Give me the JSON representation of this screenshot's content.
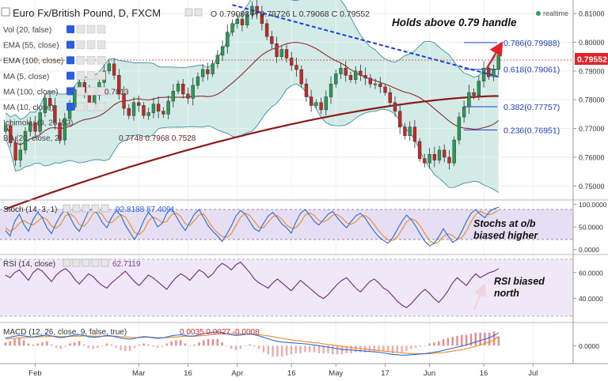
{
  "header": {
    "symbol_title": "Euro Fx/British Pound, D, FXCM",
    "ohlc": "O 0.79098 H 0.79726 L 0.79068 C 0.79552",
    "realtime_label": "realtime"
  },
  "indicators": [
    {
      "label": "Vol (20, false)",
      "value": ""
    },
    {
      "label": "EMA (55, close)",
      "value": ""
    },
    {
      "label": "EMA (100, close)",
      "value": ""
    },
    {
      "label": "MA (5, close)",
      "value": ""
    },
    {
      "label": "MA (100, close)",
      "value": "0.7813"
    },
    {
      "label": "MA (10, close)",
      "value": ""
    },
    {
      "label": "Ichimoku (9, 26, 52)",
      "value": ""
    },
    {
      "label": "BB (20, close, 2)",
      "value": "0.7748 0.7968 0.7528"
    }
  ],
  "annotations": {
    "headline": "Holds above 0.79 handle",
    "stoch_note_1": "Stochs at o/b",
    "stoch_note_2": "biased higher",
    "rsi_note_1": "RSI biased",
    "rsi_note_2": "north"
  },
  "fib_levels": [
    {
      "label": "0.786(0.79988)",
      "value": 0.79988
    },
    {
      "label": "0.618(0.79061)",
      "value": 0.79061
    },
    {
      "label": "0.382(0.77757)",
      "value": 0.77757
    },
    {
      "label": "0.236(0.76951)",
      "value": 0.76951
    }
  ],
  "price_axis": {
    "ticks": [
      "0.81000",
      "0.80000",
      "0.79000",
      "0.78000",
      "0.77000",
      "0.76000",
      "0.75000"
    ],
    "tick_values": [
      0.81,
      0.8,
      0.79,
      0.78,
      0.77,
      0.76,
      0.75
    ],
    "current_price": "0.79552",
    "current_value": 0.79552,
    "range": [
      0.7465,
      0.8125
    ]
  },
  "stoch_panel": {
    "label": "Stoch (14, 3, 1)",
    "values": "92.8188 87.4091",
    "ticks": [
      "100.0000",
      "50.0000",
      "0.0000"
    ],
    "tick_values": [
      100,
      50,
      0
    ],
    "bands": [
      80,
      20
    ],
    "range": [
      -4,
      104
    ],
    "k": [
      42,
      30,
      62,
      78,
      55,
      40,
      66,
      82,
      70,
      48,
      35,
      58,
      76,
      90,
      72,
      52,
      40,
      62,
      84,
      92,
      78,
      60,
      48,
      70,
      86,
      76,
      54,
      38,
      22,
      40,
      64,
      82,
      70,
      50,
      58,
      80,
      90,
      74,
      56,
      42,
      60,
      78,
      88,
      70,
      52,
      40,
      30,
      18,
      34,
      52,
      74,
      86,
      78,
      62,
      46,
      40,
      58,
      74,
      82,
      70,
      56,
      48,
      36,
      60,
      80,
      88,
      76,
      62,
      54,
      66,
      78,
      84,
      70,
      58,
      48,
      62,
      74,
      80,
      70,
      54,
      40,
      28,
      20,
      14,
      26,
      44,
      62,
      76,
      66,
      52,
      34,
      18,
      8,
      14,
      28,
      46,
      30,
      16,
      22,
      40,
      62,
      80,
      88,
      78,
      70,
      84,
      90,
      93
    ],
    "d": [
      48,
      40,
      46,
      58,
      64,
      58,
      54,
      62,
      72,
      66,
      52,
      47,
      56,
      74,
      79,
      72,
      55,
      51,
      62,
      79,
      85,
      77,
      62,
      59,
      68,
      77,
      72,
      56,
      38,
      33,
      42,
      62,
      72,
      67,
      59,
      62,
      76,
      81,
      73,
      57,
      53,
      64,
      76,
      79,
      63,
      48,
      37,
      29,
      27,
      35,
      53,
      71,
      80,
      75,
      62,
      49,
      48,
      61,
      72,
      75,
      66,
      54,
      47,
      48,
      59,
      76,
      81,
      75,
      64,
      61,
      66,
      76,
      77,
      70,
      59,
      56,
      61,
      72,
      75,
      68,
      55,
      41,
      30,
      21,
      20,
      28,
      44,
      61,
      68,
      64,
      51,
      35,
      20,
      13,
      17,
      29,
      35,
      31,
      23,
      26,
      41,
      61,
      77,
      85,
      79,
      77,
      81,
      87
    ]
  },
  "rsi_panel": {
    "label": "RSI (14, close)",
    "value": "62.7119",
    "ticks": [
      "60.0000",
      "40.0000"
    ],
    "tick_values": [
      60,
      40
    ],
    "range": [
      24,
      72
    ],
    "bands": [
      70,
      30
    ],
    "values": [
      58,
      56,
      60,
      62,
      58,
      54,
      60,
      63,
      61,
      57,
      53,
      58,
      61,
      63,
      60,
      55,
      51,
      55,
      59,
      57,
      53,
      50,
      48,
      52,
      55,
      58,
      61,
      57,
      53,
      50,
      54,
      58,
      56,
      53,
      50,
      47,
      52,
      56,
      59,
      57,
      54,
      58,
      62,
      60,
      56,
      59,
      64,
      67,
      65,
      62,
      66,
      68,
      64,
      60,
      55,
      52,
      50,
      48,
      52,
      55,
      52,
      49,
      46,
      50,
      54,
      51,
      48,
      45,
      42,
      40,
      43,
      47,
      51,
      54,
      56,
      52,
      48,
      45,
      49,
      53,
      55,
      52,
      48,
      46,
      42,
      38,
      35,
      33,
      36,
      40,
      44,
      47,
      44,
      40,
      37,
      41,
      46,
      52,
      56,
      53,
      50,
      55,
      59,
      56,
      58,
      60,
      61,
      63
    ]
  },
  "macd_panel": {
    "label": "MACD (12, 26, close, 9, false, true)",
    "values": "0.0035 0.0027 -0.0008",
    "ticks": [
      "0.0000"
    ],
    "tick_values": [
      0
    ],
    "range": [
      -0.0045,
      0.0055
    ],
    "macd": [
      0.0021,
      0.0023,
      0.0026,
      0.0028,
      0.0027,
      0.0025,
      0.0024,
      0.0026,
      0.0028,
      0.0029,
      0.0027,
      0.0024,
      0.0022,
      0.0024,
      0.0027,
      0.0029,
      0.003,
      0.0028,
      0.0025,
      0.0023,
      0.0024,
      0.0026,
      0.0028,
      0.0027,
      0.0024,
      0.0021,
      0.0019,
      0.0018,
      0.002,
      0.0023,
      0.0025,
      0.0024,
      0.0022,
      0.002,
      0.0021,
      0.0024,
      0.0027,
      0.0029,
      0.003,
      0.0028,
      0.0026,
      0.0027,
      0.003,
      0.0033,
      0.0035,
      0.0037,
      0.0038,
      0.0036,
      0.0033,
      0.003,
      0.0028,
      0.0029,
      0.0031,
      0.0032,
      0.003,
      0.0027,
      0.0023,
      0.0019,
      0.0015,
      0.0012,
      0.001,
      0.0009,
      0.0008,
      0.0007,
      0.0006,
      0.0005,
      0.0004,
      0.0002,
      0.0,
      -0.0002,
      -0.0004,
      -0.0006,
      -0.0008,
      -0.001,
      -0.0011,
      -0.0012,
      -0.0013,
      -0.0014,
      -0.0015,
      -0.0016,
      -0.0017,
      -0.0018,
      -0.002,
      -0.0022,
      -0.0024,
      -0.0025,
      -0.0026,
      -0.0026,
      -0.0025,
      -0.0024,
      -0.0023,
      -0.0022,
      -0.002,
      -0.0018,
      -0.0016,
      -0.0013,
      -0.001,
      -0.0007,
      -0.0004,
      -0.0001,
      0.0002,
      0.0006,
      0.001,
      0.0014,
      0.0018,
      0.0022,
      0.0028,
      0.0035
    ],
    "signal": [
      0.0018,
      0.0019,
      0.002,
      0.0021,
      0.0022,
      0.0023,
      0.0023,
      0.0024,
      0.0025,
      0.0025,
      0.0026,
      0.0026,
      0.0025,
      0.0025,
      0.0025,
      0.0026,
      0.0026,
      0.0027,
      0.0027,
      0.0026,
      0.0026,
      0.0026,
      0.0026,
      0.0026,
      0.0026,
      0.0025,
      0.0024,
      0.0023,
      0.0022,
      0.0022,
      0.0023,
      0.0023,
      0.0023,
      0.0022,
      0.0022,
      0.0022,
      0.0023,
      0.0024,
      0.0025,
      0.0026,
      0.0026,
      0.0026,
      0.0027,
      0.0028,
      0.0029,
      0.0031,
      0.0032,
      0.0033,
      0.0033,
      0.0033,
      0.0032,
      0.0032,
      0.0031,
      0.0031,
      0.0031,
      0.003,
      0.0029,
      0.0027,
      0.0025,
      0.0022,
      0.002,
      0.0018,
      0.0016,
      0.0014,
      0.0013,
      0.0011,
      0.001,
      0.0008,
      0.0007,
      0.0005,
      0.0003,
      0.0002,
      0.0,
      -0.0002,
      -0.0004,
      -0.0005,
      -0.0007,
      -0.0008,
      -0.0009,
      -0.0011,
      -0.0012,
      -0.0013,
      -0.0015,
      -0.0016,
      -0.0017,
      -0.0019,
      -0.002,
      -0.0021,
      -0.0022,
      -0.0022,
      -0.0022,
      -0.0022,
      -0.0022,
      -0.0021,
      -0.002,
      -0.0019,
      -0.0017,
      -0.0015,
      -0.0013,
      -0.0011,
      -0.0008,
      -0.0005,
      -0.0002,
      0.0002,
      0.0006,
      0.001,
      0.0015,
      0.0027
    ]
  },
  "time_axis": {
    "labels": [
      {
        "text": "Feb",
        "index": 6
      },
      {
        "text": "Mar",
        "index": 27
      },
      {
        "text": "16",
        "index": 37
      },
      {
        "text": "Apr",
        "index": 47
      },
      {
        "text": "16",
        "index": 58
      },
      {
        "text": "May",
        "index": 67
      },
      {
        "text": "17",
        "index": 77
      },
      {
        "text": "Jun",
        "index": 86
      },
      {
        "text": "16",
        "index": 97
      },
      {
        "text": "Jul",
        "index": 107
      }
    ],
    "slots": 115
  },
  "chart_data": {
    "type": "candlestick",
    "title": "Euro Fx/British Pound, D, FXCM",
    "ylim": [
      0.7465,
      0.8125
    ],
    "price_ticks": [
      0.81,
      0.8,
      0.79,
      0.78,
      0.77,
      0.76,
      0.75
    ],
    "close": [
      0.771,
      0.765,
      0.759,
      0.7625,
      0.769,
      0.772,
      0.769,
      0.7755,
      0.7805,
      0.778,
      0.772,
      0.766,
      0.7735,
      0.7775,
      0.7835,
      0.786,
      0.7825,
      0.7785,
      0.7815,
      0.786,
      0.79,
      0.7925,
      0.7885,
      0.782,
      0.777,
      0.7745,
      0.779,
      0.778,
      0.7745,
      0.7755,
      0.7785,
      0.776,
      0.775,
      0.7795,
      0.783,
      0.7855,
      0.782,
      0.7805,
      0.785,
      0.788,
      0.7905,
      0.789,
      0.7925,
      0.7955,
      0.7985,
      0.8035,
      0.8065,
      0.808,
      0.806,
      0.8095,
      0.8125,
      0.81,
      0.8065,
      0.802,
      0.7995,
      0.795,
      0.7975,
      0.7945,
      0.792,
      0.7905,
      0.7855,
      0.781,
      0.778,
      0.779,
      0.7765,
      0.781,
      0.7855,
      0.789,
      0.791,
      0.7885,
      0.787,
      0.79,
      0.7885,
      0.7875,
      0.7855,
      0.7855,
      0.7845,
      0.7825,
      0.779,
      0.776,
      0.7705,
      0.7675,
      0.7705,
      0.7655,
      0.7595,
      0.758,
      0.761,
      0.759,
      0.7625,
      0.76,
      0.758,
      0.766,
      0.774,
      0.7775,
      0.7825,
      0.7815,
      0.7865,
      0.791,
      0.788,
      0.7905,
      0.7955
    ],
    "bollinger": {
      "upper": 0.7968,
      "middle": 0.7748,
      "lower": 0.7528
    },
    "ma_100": 0.7813,
    "fibonacci": {
      "0.786": 0.79988,
      "0.618": 0.79061,
      "0.382": 0.77757,
      "0.236": 0.76951
    },
    "trendline": {
      "from": {
        "index": 46,
        "price": 0.813
      },
      "to": {
        "index": 100,
        "price": 0.788
      }
    }
  }
}
